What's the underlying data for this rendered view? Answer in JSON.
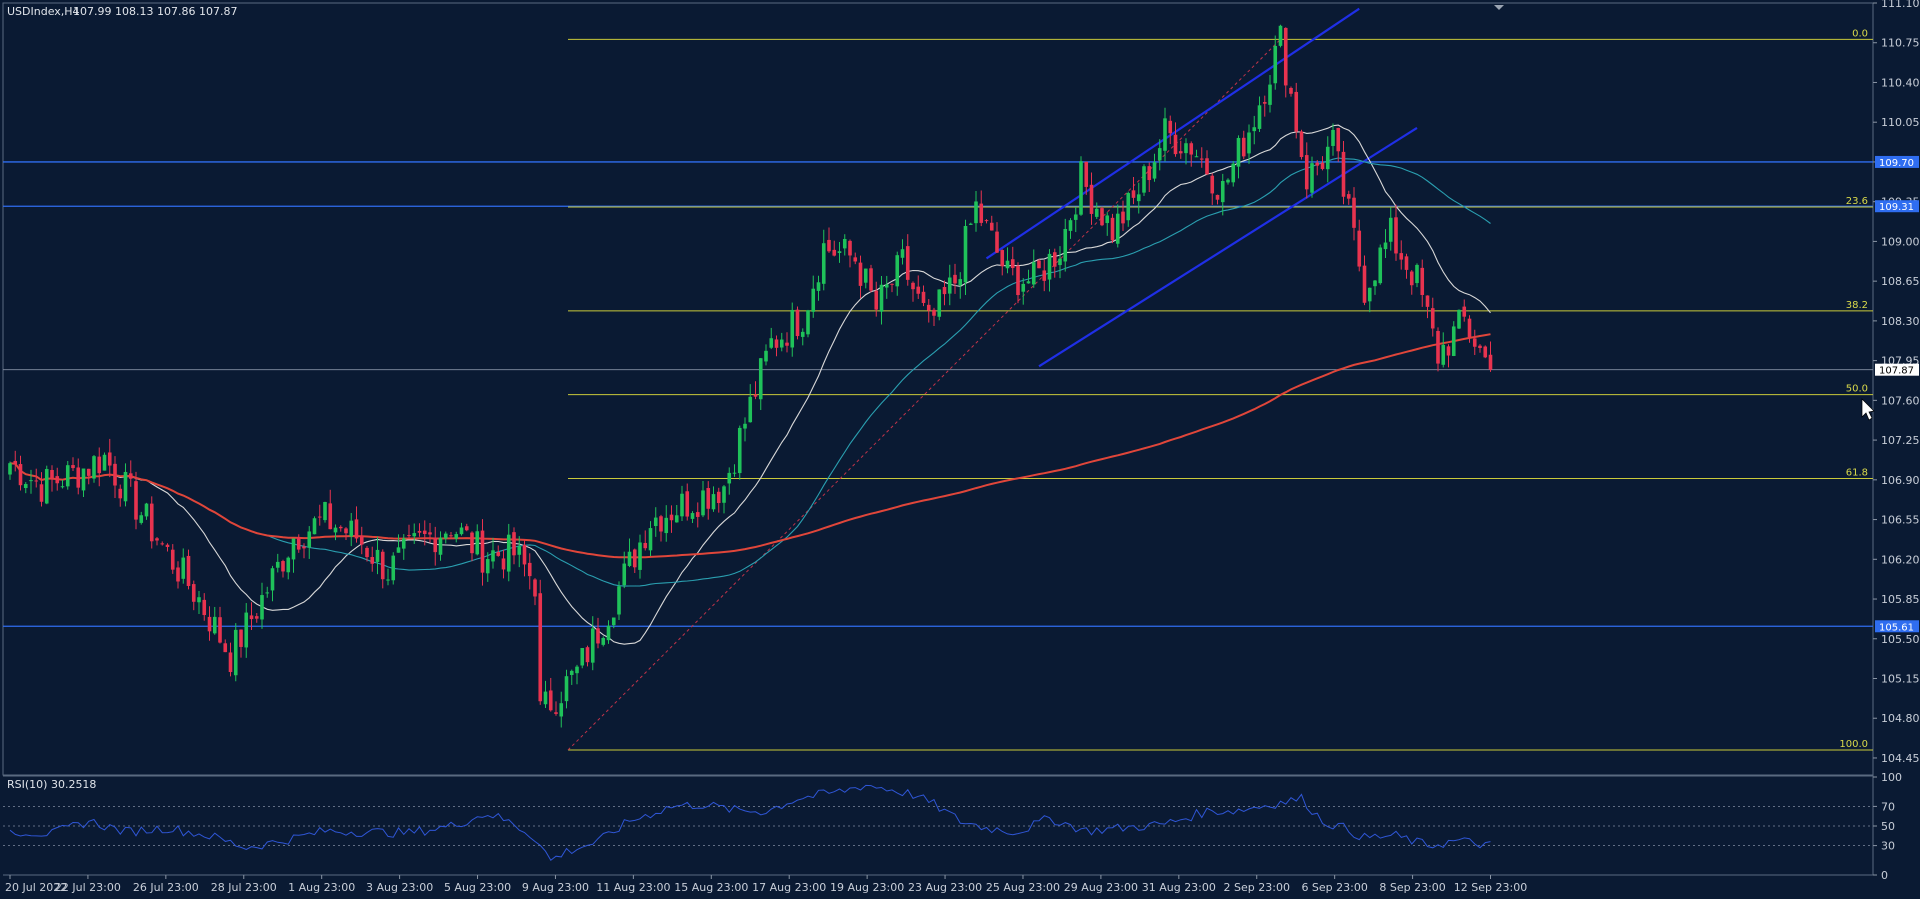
{
  "header": {
    "symbol": "USDIndex,H4",
    "ohlc": "107.99 108.13 107.86 107.87"
  },
  "rsi_label": "RSI(10) 30.2518",
  "colors": {
    "background": "#0a1a33",
    "bull": "#1fc25a",
    "bear": "#e8334f",
    "ma_fast": "#d8d8d8",
    "ma_mid": "#2a9fb0",
    "ma_slow": "#e0463a",
    "fib": "#c9c93a",
    "hline": "#2f6df0",
    "channel": "#1f2fe6",
    "rsi": "#2f56d6"
  },
  "chart_data": [
    {
      "type": "candlestick",
      "title": "",
      "ylim": [
        104.3,
        111.1
      ],
      "y_ticks": [
        "111.10",
        "110.75",
        "110.40",
        "110.05",
        "109.70",
        "109.35",
        "109.00",
        "108.65",
        "108.30",
        "107.95",
        "107.60",
        "107.25",
        "106.90",
        "106.55",
        "106.20",
        "105.85",
        "105.50",
        "105.15",
        "104.80",
        "104.45"
      ],
      "x_ticks": [
        "20 Jul 2022",
        "22 Jul 23:00",
        "26 Jul 23:00",
        "28 Jul 23:00",
        "1 Aug 23:00",
        "3 Aug 23:00",
        "5 Aug 23:00",
        "9 Aug 23:00",
        "11 Aug 23:00",
        "15 Aug 23:00",
        "17 Aug 23:00",
        "19 Aug 23:00",
        "23 Aug 23:00",
        "25 Aug 23:00",
        "29 Aug 23:00",
        "31 Aug 23:00",
        "2 Sep 23:00",
        "6 Sep 23:00",
        "8 Sep 23:00",
        "12 Sep 23:00"
      ],
      "price_anchors": [
        [
          0,
          107.05
        ],
        [
          6,
          106.85
        ],
        [
          12,
          106.95
        ],
        [
          18,
          107.1
        ],
        [
          23,
          106.75
        ],
        [
          30,
          106.25
        ],
        [
          36,
          105.85
        ],
        [
          42,
          105.35
        ],
        [
          48,
          105.85
        ],
        [
          54,
          106.4
        ],
        [
          60,
          106.55
        ],
        [
          66,
          106.4
        ],
        [
          72,
          106.1
        ],
        [
          78,
          106.35
        ],
        [
          84,
          106.5
        ],
        [
          90,
          106.25
        ],
        [
          96,
          106.25
        ],
        [
          100,
          106.0
        ],
        [
          101,
          104.85
        ],
        [
          108,
          105.2
        ],
        [
          115,
          105.85
        ],
        [
          122,
          106.55
        ],
        [
          129,
          106.7
        ],
        [
          136,
          106.85
        ],
        [
          141,
          107.55
        ],
        [
          145,
          108.1
        ],
        [
          151,
          108.35
        ],
        [
          155,
          108.95
        ],
        [
          161,
          108.85
        ],
        [
          165,
          108.4
        ],
        [
          170,
          108.8
        ],
        [
          175,
          108.25
        ],
        [
          180,
          108.65
        ],
        [
          184,
          109.3
        ],
        [
          190,
          108.7
        ],
        [
          195,
          108.65
        ],
        [
          200,
          108.95
        ],
        [
          204,
          109.55
        ],
        [
          210,
          109.1
        ],
        [
          214,
          109.35
        ],
        [
          220,
          109.95
        ],
        [
          225,
          109.85
        ],
        [
          231,
          109.45
        ],
        [
          237,
          110.1
        ],
        [
          242,
          110.78
        ],
        [
          247,
          109.55
        ],
        [
          252,
          109.85
        ],
        [
          258,
          108.6
        ],
        [
          263,
          109.05
        ],
        [
          268,
          108.65
        ],
        [
          272,
          108.0
        ],
        [
          277,
          108.3
        ],
        [
          282,
          107.87
        ]
      ],
      "horizontal_levels": [
        {
          "value": 109.7,
          "label": "109.70"
        },
        {
          "value": 109.31,
          "label": "109.31"
        },
        {
          "value": 105.61,
          "label": "105.61"
        },
        {
          "value": 107.87,
          "label": "107.87",
          "current": true
        }
      ],
      "fibonacci": {
        "high": 110.78,
        "low": 104.52,
        "levels": [
          {
            "ratio": 0.0,
            "label": "0.0"
          },
          {
            "ratio": 0.236,
            "label": "23.6"
          },
          {
            "ratio": 0.382,
            "label": "38.2"
          },
          {
            "ratio": 0.5,
            "label": "50.0"
          },
          {
            "ratio": 0.618,
            "label": "61.8"
          },
          {
            "ratio": 1.0,
            "label": "100.0"
          }
        ]
      },
      "channel": {
        "upper": [
          [
            186,
            108.85
          ],
          [
            257,
            111.05
          ]
        ],
        "lower": [
          [
            196,
            107.9
          ],
          [
            268,
            110.0
          ]
        ]
      }
    },
    {
      "type": "line",
      "title": "",
      "ylim": [
        0,
        100
      ],
      "y_ticks": [
        "100",
        "70",
        "50",
        "30",
        "0"
      ],
      "levels": [
        70,
        50,
        30
      ],
      "rsi_anchors": [
        [
          0,
          45
        ],
        [
          8,
          42
        ],
        [
          15,
          55
        ],
        [
          22,
          44
        ],
        [
          30,
          48
        ],
        [
          38,
          40
        ],
        [
          45,
          28
        ],
        [
          52,
          35
        ],
        [
          60,
          45
        ],
        [
          68,
          44
        ],
        [
          76,
          43
        ],
        [
          84,
          50
        ],
        [
          91,
          63
        ],
        [
          96,
          52
        ],
        [
          100,
          38
        ],
        [
          103,
          15
        ],
        [
          106,
          24
        ],
        [
          112,
          34
        ],
        [
          118,
          55
        ],
        [
          126,
          70
        ],
        [
          132,
          72
        ],
        [
          138,
          66
        ],
        [
          144,
          65
        ],
        [
          150,
          78
        ],
        [
          158,
          85
        ],
        [
          163,
          92
        ],
        [
          168,
          87
        ],
        [
          172,
          82
        ],
        [
          176,
          72
        ],
        [
          181,
          55
        ],
        [
          186,
          48
        ],
        [
          192,
          44
        ],
        [
          198,
          58
        ],
        [
          205,
          45
        ],
        [
          212,
          48
        ],
        [
          220,
          52
        ],
        [
          228,
          65
        ],
        [
          234,
          66
        ],
        [
          240,
          72
        ],
        [
          246,
          78
        ],
        [
          250,
          55
        ],
        [
          254,
          48
        ],
        [
          258,
          38
        ],
        [
          264,
          40
        ],
        [
          270,
          30
        ],
        [
          276,
          35
        ],
        [
          282,
          30
        ]
      ]
    }
  ]
}
